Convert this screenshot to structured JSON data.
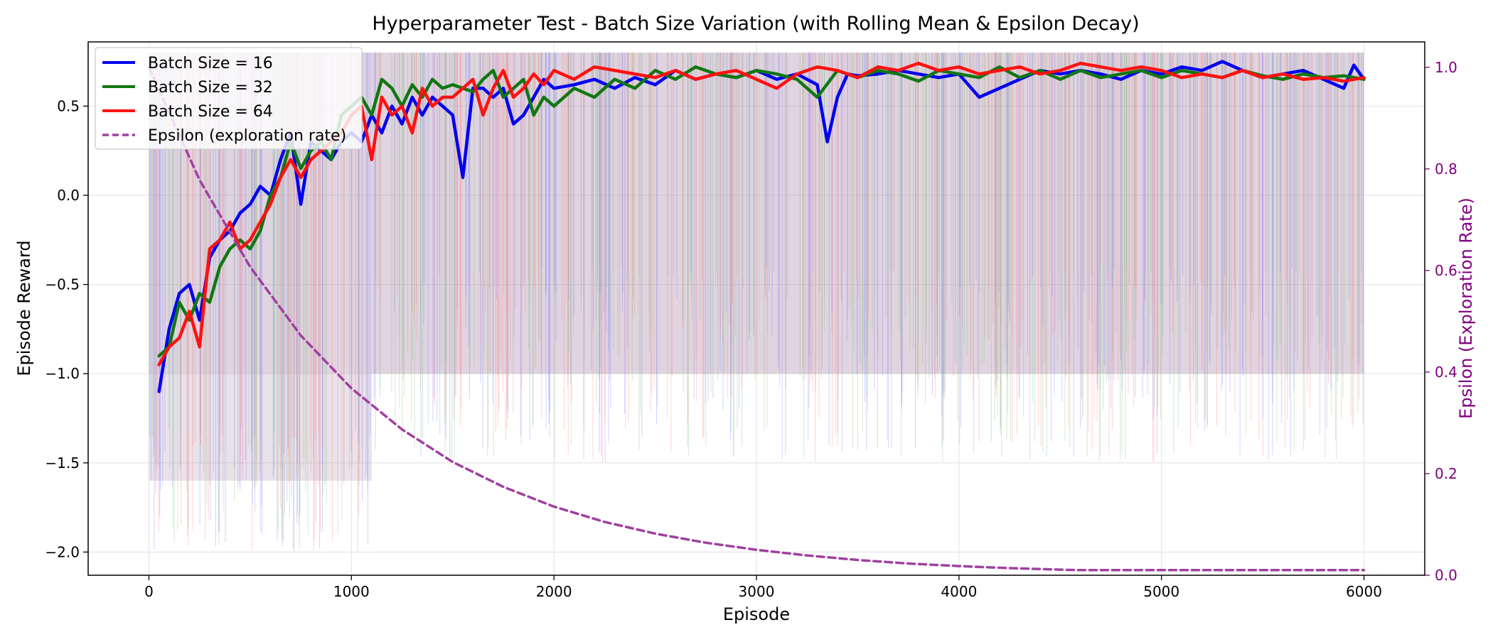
{
  "chart_data": {
    "type": "line",
    "title": "Hyperparameter Test - Batch Size Variation (with Rolling Mean & Epsilon Decay)",
    "xlabel": "Episode",
    "ylabel": "Episode Reward",
    "y2label": "Epsilon (Exploration Rate)",
    "xlim": [
      -300,
      6300
    ],
    "ylim": [
      -2.13,
      0.86
    ],
    "y2lim": [
      0.0,
      1.05
    ],
    "xticks": [
      0,
      1000,
      2000,
      3000,
      4000,
      5000,
      6000
    ],
    "yticks": [
      -2.0,
      -1.5,
      -1.0,
      -0.5,
      0.0,
      0.5
    ],
    "y2ticks": [
      0.0,
      0.2,
      0.4,
      0.6,
      0.8,
      1.0
    ],
    "xtick_labels": [
      "0",
      "1000",
      "2000",
      "3000",
      "4000",
      "5000",
      "6000"
    ],
    "ytick_labels": [
      "−2.0",
      "−1.5",
      "−1.0",
      "−0.5",
      "0.0",
      "0.5"
    ],
    "y2tick_labels": [
      "0.0",
      "0.2",
      "0.4",
      "0.6",
      "0.8",
      "1.0"
    ],
    "grid": true,
    "legend_position": "upper-left",
    "legend": [
      {
        "label": "Batch Size = 16",
        "color": "#0000ee",
        "style": "solid"
      },
      {
        "label": "Batch Size = 32",
        "color": "#117711",
        "style": "solid"
      },
      {
        "label": "Batch Size = 64",
        "color": "#ff1111",
        "style": "solid"
      },
      {
        "label": "Epsilon (exploration rate)",
        "color": "#a040a0",
        "style": "dashed"
      }
    ],
    "series": [
      {
        "name": "Batch Size = 16",
        "axis": "left",
        "color": "#0000ee",
        "x": [
          50,
          100,
          150,
          200,
          250,
          300,
          350,
          400,
          450,
          500,
          550,
          600,
          650,
          700,
          750,
          800,
          850,
          900,
          950,
          1000,
          1050,
          1100,
          1150,
          1200,
          1250,
          1300,
          1350,
          1400,
          1450,
          1500,
          1550,
          1600,
          1650,
          1700,
          1750,
          1800,
          1850,
          1900,
          1950,
          2000,
          2100,
          2200,
          2300,
          2400,
          2500,
          2600,
          2700,
          2800,
          2900,
          3000,
          3100,
          3200,
          3300,
          3350,
          3400,
          3450,
          3500,
          3600,
          3700,
          3800,
          3900,
          4000,
          4100,
          4200,
          4300,
          4400,
          4500,
          4600,
          4700,
          4800,
          4900,
          5000,
          5100,
          5200,
          5300,
          5400,
          5500,
          5600,
          5700,
          5800,
          5900,
          5950,
          6000
        ],
        "y": [
          -1.1,
          -0.75,
          -0.55,
          -0.5,
          -0.7,
          -0.35,
          -0.25,
          -0.2,
          -0.1,
          -0.05,
          0.05,
          0.0,
          0.2,
          0.35,
          -0.05,
          0.3,
          0.25,
          0.2,
          0.3,
          0.35,
          0.3,
          0.45,
          0.35,
          0.5,
          0.4,
          0.55,
          0.45,
          0.55,
          0.5,
          0.45,
          0.1,
          0.6,
          0.6,
          0.55,
          0.6,
          0.4,
          0.45,
          0.55,
          0.65,
          0.6,
          0.62,
          0.65,
          0.6,
          0.66,
          0.62,
          0.7,
          0.65,
          0.68,
          0.66,
          0.7,
          0.65,
          0.68,
          0.62,
          0.3,
          0.55,
          0.68,
          0.67,
          0.68,
          0.7,
          0.68,
          0.66,
          0.68,
          0.55,
          0.6,
          0.65,
          0.7,
          0.68,
          0.7,
          0.68,
          0.65,
          0.7,
          0.68,
          0.72,
          0.7,
          0.75,
          0.7,
          0.66,
          0.68,
          0.7,
          0.65,
          0.6,
          0.73,
          0.65
        ]
      },
      {
        "name": "Batch Size = 32",
        "axis": "left",
        "color": "#117711",
        "x": [
          50,
          100,
          150,
          200,
          250,
          300,
          350,
          400,
          450,
          500,
          550,
          600,
          650,
          700,
          750,
          800,
          850,
          900,
          950,
          1000,
          1050,
          1100,
          1150,
          1200,
          1250,
          1300,
          1350,
          1400,
          1450,
          1500,
          1550,
          1600,
          1650,
          1700,
          1750,
          1800,
          1850,
          1900,
          1950,
          2000,
          2100,
          2200,
          2300,
          2400,
          2500,
          2600,
          2700,
          2800,
          2900,
          3000,
          3100,
          3200,
          3300,
          3400,
          3500,
          3600,
          3700,
          3800,
          3900,
          4000,
          4100,
          4200,
          4300,
          4400,
          4500,
          4600,
          4700,
          4800,
          4900,
          5000,
          5100,
          5200,
          5300,
          5400,
          5500,
          5600,
          5700,
          5800,
          5900,
          6000
        ],
        "y": [
          -0.9,
          -0.85,
          -0.6,
          -0.7,
          -0.55,
          -0.6,
          -0.4,
          -0.3,
          -0.25,
          -0.3,
          -0.2,
          0.0,
          0.1,
          0.3,
          0.15,
          0.25,
          0.3,
          0.2,
          0.45,
          0.5,
          0.55,
          0.45,
          0.65,
          0.6,
          0.5,
          0.62,
          0.55,
          0.65,
          0.6,
          0.62,
          0.6,
          0.58,
          0.65,
          0.7,
          0.55,
          0.6,
          0.65,
          0.45,
          0.55,
          0.5,
          0.6,
          0.55,
          0.65,
          0.6,
          0.7,
          0.65,
          0.72,
          0.68,
          0.66,
          0.7,
          0.68,
          0.65,
          0.55,
          0.7,
          0.66,
          0.7,
          0.68,
          0.64,
          0.7,
          0.68,
          0.66,
          0.72,
          0.66,
          0.7,
          0.65,
          0.7,
          0.66,
          0.68,
          0.7,
          0.66,
          0.7,
          0.68,
          0.66,
          0.7,
          0.67,
          0.65,
          0.68,
          0.66,
          0.67,
          0.65
        ]
      },
      {
        "name": "Batch Size = 64",
        "axis": "left",
        "color": "#ff1111",
        "x": [
          50,
          100,
          150,
          200,
          250,
          300,
          350,
          400,
          450,
          500,
          550,
          600,
          650,
          700,
          750,
          800,
          850,
          900,
          950,
          1000,
          1050,
          1100,
          1150,
          1200,
          1250,
          1300,
          1350,
          1400,
          1450,
          1500,
          1550,
          1600,
          1650,
          1700,
          1750,
          1800,
          1850,
          1900,
          1950,
          2000,
          2100,
          2200,
          2300,
          2400,
          2500,
          2600,
          2700,
          2800,
          2900,
          3000,
          3100,
          3200,
          3300,
          3400,
          3500,
          3600,
          3700,
          3800,
          3900,
          4000,
          4100,
          4200,
          4300,
          4400,
          4500,
          4600,
          4700,
          4800,
          4900,
          5000,
          5100,
          5200,
          5300,
          5400,
          5500,
          5600,
          5700,
          5800,
          5900,
          6000
        ],
        "y": [
          -0.95,
          -0.85,
          -0.8,
          -0.65,
          -0.85,
          -0.3,
          -0.25,
          -0.15,
          -0.3,
          -0.25,
          -0.15,
          -0.05,
          0.1,
          0.2,
          0.1,
          0.2,
          0.25,
          0.3,
          0.35,
          0.45,
          0.5,
          0.2,
          0.55,
          0.45,
          0.5,
          0.35,
          0.6,
          0.5,
          0.55,
          0.55,
          0.6,
          0.65,
          0.45,
          0.6,
          0.7,
          0.55,
          0.6,
          0.68,
          0.62,
          0.7,
          0.65,
          0.72,
          0.7,
          0.68,
          0.66,
          0.7,
          0.65,
          0.68,
          0.7,
          0.65,
          0.6,
          0.68,
          0.72,
          0.7,
          0.66,
          0.72,
          0.7,
          0.74,
          0.7,
          0.72,
          0.68,
          0.7,
          0.72,
          0.68,
          0.7,
          0.74,
          0.72,
          0.7,
          0.72,
          0.7,
          0.66,
          0.68,
          0.66,
          0.7,
          0.66,
          0.68,
          0.65,
          0.66,
          0.64,
          0.66
        ]
      },
      {
        "name": "Epsilon (exploration rate)",
        "axis": "right",
        "color": "#a040a0",
        "style": "dashed",
        "x": [
          0,
          250,
          500,
          750,
          1000,
          1250,
          1500,
          1750,
          2000,
          2250,
          2500,
          2750,
          3000,
          3250,
          3500,
          3750,
          4000,
          4250,
          4500,
          4600,
          5000,
          5500,
          6000
        ],
        "y": [
          1.0,
          0.778,
          0.607,
          0.472,
          0.368,
          0.287,
          0.223,
          0.174,
          0.135,
          0.105,
          0.082,
          0.064,
          0.05,
          0.039,
          0.03,
          0.023,
          0.018,
          0.014,
          0.011,
          0.01,
          0.01,
          0.01,
          0.01
        ]
      }
    ],
    "raw_reward_band": {
      "x": [
        0,
        6000
      ],
      "upper": [
        0.8,
        0.8
      ],
      "lower_early": [
        -2.0,
        -1.0
      ],
      "lower_late": [
        -1.3,
        -1.3
      ],
      "colors": [
        "#8080ff",
        "#80c080",
        "#ff8080"
      ]
    }
  }
}
